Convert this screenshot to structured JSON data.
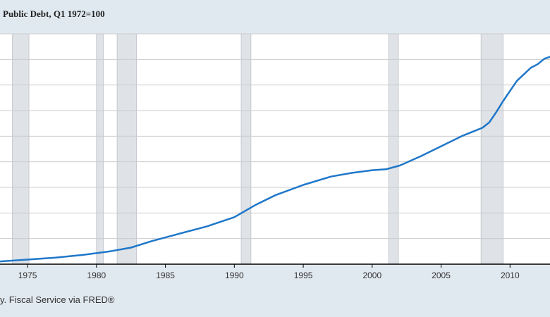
{
  "chart_data": {
    "type": "line",
    "title": "Public Debt, Q1 1972=100",
    "xlabel": "",
    "ylabel": "",
    "xlim": [
      1973.0,
      2012.9
    ],
    "ylim": [
      100,
      1350
    ],
    "x_ticks": [
      1975,
      1980,
      1985,
      1990,
      1995,
      2000,
      2005,
      2010
    ],
    "grid": true,
    "recessions": [
      {
        "start": 1973.9,
        "end": 1975.1
      },
      {
        "start": 1980.0,
        "end": 1980.5
      },
      {
        "start": 1981.5,
        "end": 1982.9
      },
      {
        "start": 1990.5,
        "end": 1991.2
      },
      {
        "start": 2001.2,
        "end": 2001.9
      },
      {
        "start": 2007.9,
        "end": 2009.5
      }
    ],
    "series": [
      {
        "name": "",
        "color": "#1f77c9",
        "x": [
          1973.0,
          1975.0,
          1977.0,
          1979.0,
          1981.0,
          1982.5,
          1984.0,
          1986.0,
          1988.0,
          1990.0,
          1991.5,
          1993.0,
          1995.0,
          1997.0,
          1998.5,
          2000.0,
          2001.0,
          2002.0,
          2003.5,
          2005.0,
          2006.5,
          2007.5,
          2008.0,
          2008.5,
          2009.0,
          2009.5,
          2010.0,
          2010.5,
          2011.0,
          2011.5,
          2012.0,
          2012.5,
          2012.9
        ],
        "values": [
          115,
          125,
          135,
          150,
          170,
          190,
          225,
          265,
          305,
          355,
          420,
          475,
          530,
          575,
          595,
          610,
          615,
          635,
          685,
          740,
          795,
          825,
          840,
          870,
          925,
          985,
          1040,
          1095,
          1130,
          1165,
          1185,
          1215,
          1225
        ]
      }
    ]
  },
  "footer": {
    "source": "y. Fiscal Service via FRED®"
  }
}
